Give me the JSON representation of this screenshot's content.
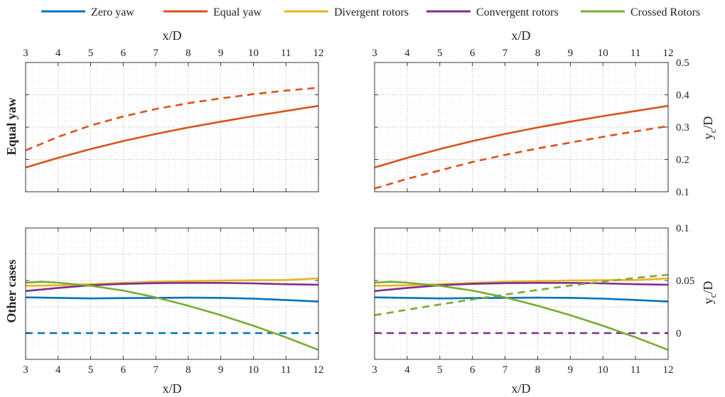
{
  "legend": [
    {
      "label": "Zero yaw",
      "color": "#0072BD"
    },
    {
      "label": "Equal yaw",
      "color": "#D95319"
    },
    {
      "label": "Divergent rotors",
      "color": "#EDB120"
    },
    {
      "label": "Convergent rotors",
      "color": "#7E2F8E"
    },
    {
      "label": "Crossed Rotors",
      "color": "#77AC30"
    }
  ],
  "axis_labels": {
    "x_top": "x/D",
    "x_bottom": "x/D",
    "y_right_main": "y",
    "y_right_sub": "c",
    "y_right_tail": "/D"
  },
  "row_labels": [
    "Equal yaw",
    "Other cases"
  ],
  "chart_data": [
    {
      "type": "line",
      "row_label": "Equal yaw",
      "xlim": [
        3,
        12
      ],
      "ylim": [
        0.1,
        0.5
      ],
      "xticks": [
        "3",
        "4",
        "5",
        "6",
        "7",
        "8",
        "9",
        "10",
        "11",
        "12"
      ],
      "yticks": [],
      "grid": true,
      "series": [
        {
          "name": "Equal yaw",
          "color": "#D95319",
          "style": "solid",
          "x": [
            3,
            4,
            5,
            6,
            7,
            8,
            9,
            10,
            11,
            12
          ],
          "y": [
            0.175,
            0.205,
            0.232,
            0.257,
            0.279,
            0.299,
            0.317,
            0.334,
            0.35,
            0.366
          ]
        },
        {
          "name": "",
          "color": "#D95319",
          "style": "dashed",
          "x": [
            3,
            4,
            5,
            6,
            7,
            8,
            9,
            10,
            11,
            12
          ],
          "y": [
            0.228,
            0.27,
            0.305,
            0.333,
            0.356,
            0.374,
            0.389,
            0.402,
            0.413,
            0.422
          ]
        }
      ]
    },
    {
      "type": "line",
      "row_label": "",
      "xlim": [
        3,
        12
      ],
      "ylim": [
        0.1,
        0.5
      ],
      "xticks": [
        "3",
        "4",
        "5",
        "6",
        "7",
        "8",
        "9",
        "10",
        "11",
        "12"
      ],
      "yticks": [
        "0.1",
        "0.2",
        "0.3",
        "0.4",
        "0.5"
      ],
      "grid": true,
      "series": [
        {
          "name": "Equal yaw",
          "color": "#D95319",
          "style": "solid",
          "x": [
            3,
            4,
            5,
            6,
            7,
            8,
            9,
            10,
            11,
            12
          ],
          "y": [
            0.175,
            0.205,
            0.232,
            0.257,
            0.279,
            0.299,
            0.317,
            0.334,
            0.35,
            0.366
          ]
        },
        {
          "name": "",
          "color": "#D95319",
          "style": "dashed",
          "x": [
            3,
            4,
            5,
            6,
            7,
            8,
            9,
            10,
            11,
            12
          ],
          "y": [
            0.11,
            0.14,
            0.166,
            0.192,
            0.214,
            0.234,
            0.252,
            0.27,
            0.287,
            0.303
          ]
        }
      ]
    },
    {
      "type": "line",
      "row_label": "Other cases",
      "xlim": [
        3,
        12
      ],
      "ylim": [
        -0.025,
        0.1
      ],
      "xticks": [
        "3",
        "4",
        "5",
        "6",
        "7",
        "8",
        "9",
        "10",
        "11",
        "12"
      ],
      "yticks": [],
      "grid": true,
      "series": [
        {
          "name": "Zero yaw",
          "color": "#0072BD",
          "style": "solid",
          "x": [
            3,
            4,
            5,
            6,
            7,
            8,
            9,
            10,
            11,
            12
          ],
          "y": [
            0.034,
            0.0335,
            0.033,
            0.0333,
            0.0335,
            0.0337,
            0.0335,
            0.0328,
            0.0315,
            0.03
          ]
        },
        {
          "name": "",
          "color": "#0072BD",
          "style": "dashed",
          "x": [
            3,
            12
          ],
          "y": [
            0.0,
            0.0
          ]
        },
        {
          "name": "Divergent rotors",
          "color": "#EDB120",
          "style": "solid",
          "x": [
            3,
            4,
            5,
            6,
            7,
            8,
            9,
            10,
            11,
            12
          ],
          "y": [
            0.045,
            0.0455,
            0.0465,
            0.0478,
            0.0488,
            0.0495,
            0.05,
            0.0503,
            0.0505,
            0.052
          ]
        },
        {
          "name": "Convergent rotors",
          "color": "#7E2F8E",
          "style": "solid",
          "x": [
            3,
            4,
            5,
            6,
            7,
            8,
            9,
            10,
            11,
            12
          ],
          "y": [
            0.04,
            0.043,
            0.0455,
            0.0468,
            0.0475,
            0.0478,
            0.0478,
            0.0473,
            0.0465,
            0.046
          ]
        },
        {
          "name": "Crossed Rotors",
          "color": "#77AC30",
          "style": "solid",
          "x": [
            3,
            3.5,
            4,
            5,
            6,
            7,
            8,
            9,
            10,
            11,
            12
          ],
          "y": [
            0.048,
            0.0488,
            0.048,
            0.045,
            0.0405,
            0.034,
            0.026,
            0.017,
            0.007,
            -0.004,
            -0.016
          ]
        }
      ]
    },
    {
      "type": "line",
      "row_label": "",
      "xlim": [
        3,
        12
      ],
      "ylim": [
        -0.025,
        0.1
      ],
      "xticks": [
        "3",
        "4",
        "5",
        "6",
        "7",
        "8",
        "9",
        "10",
        "11",
        "12"
      ],
      "yticks": [
        "0",
        "0.05",
        "0.1"
      ],
      "grid": true,
      "series": [
        {
          "name": "Zero yaw",
          "color": "#0072BD",
          "style": "solid",
          "x": [
            3,
            4,
            5,
            6,
            7,
            8,
            9,
            10,
            11,
            12
          ],
          "y": [
            0.034,
            0.0335,
            0.033,
            0.0333,
            0.0335,
            0.0337,
            0.0335,
            0.0328,
            0.0315,
            0.03
          ]
        },
        {
          "name": "",
          "color": "#7E2F8E",
          "style": "dashed",
          "x": [
            3,
            12
          ],
          "y": [
            0.0,
            0.0
          ]
        },
        {
          "name": "Divergent rotors",
          "color": "#EDB120",
          "style": "solid",
          "x": [
            3,
            4,
            5,
            6,
            7,
            8,
            9,
            10,
            11,
            12
          ],
          "y": [
            0.045,
            0.0455,
            0.0465,
            0.0478,
            0.0488,
            0.0495,
            0.05,
            0.0503,
            0.0505,
            0.052
          ]
        },
        {
          "name": "Convergent rotors",
          "color": "#7E2F8E",
          "style": "solid",
          "x": [
            3,
            4,
            5,
            6,
            7,
            8,
            9,
            10,
            11,
            12
          ],
          "y": [
            0.04,
            0.043,
            0.0455,
            0.0468,
            0.0475,
            0.0478,
            0.0478,
            0.0473,
            0.0465,
            0.046
          ]
        },
        {
          "name": "Crossed Rotors",
          "color": "#77AC30",
          "style": "solid",
          "x": [
            3,
            3.5,
            4,
            5,
            6,
            7,
            8,
            9,
            10,
            11,
            12
          ],
          "y": [
            0.048,
            0.0488,
            0.048,
            0.045,
            0.0405,
            0.034,
            0.026,
            0.017,
            0.007,
            -0.004,
            -0.016
          ]
        },
        {
          "name": "",
          "color": "#77AC30",
          "style": "dashed",
          "x": [
            3,
            4,
            5,
            6,
            7,
            8,
            9,
            10,
            11,
            12
          ],
          "y": [
            0.017,
            0.0222,
            0.0272,
            0.032,
            0.0366,
            0.041,
            0.0452,
            0.049,
            0.0525,
            0.0555
          ]
        }
      ]
    }
  ]
}
